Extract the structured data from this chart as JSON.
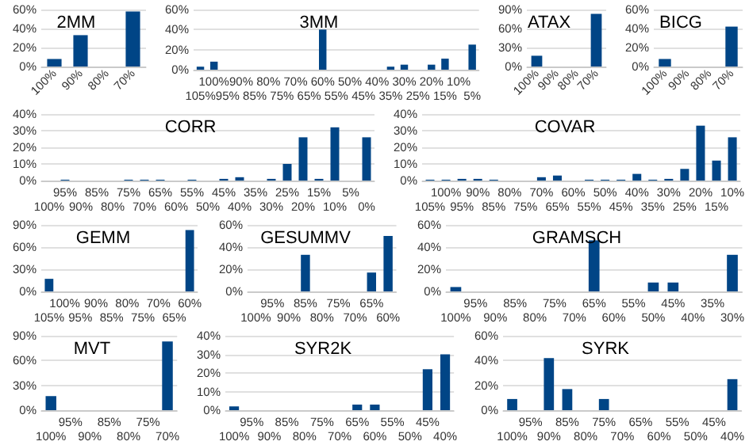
{
  "chart_data": [
    {
      "type": "bar",
      "title": "2MM",
      "categories": [
        "100%",
        "90%",
        "80%",
        "70%"
      ],
      "values": [
        8,
        33,
        0,
        58
      ],
      "color": "#004586",
      "ylim": [
        0,
        60
      ],
      "yticks": [
        {
          "value": 0,
          "label": "0%"
        },
        {
          "value": 20,
          "label": "20%"
        },
        {
          "value": 40,
          "label": "40%"
        },
        {
          "value": 60,
          "label": "60%"
        }
      ],
      "grid": "y"
    },
    {
      "type": "bar",
      "title": "3MM",
      "categories": [
        "105%",
        "100%",
        "95%",
        "90%",
        "85%",
        "80%",
        "75%",
        "70%",
        "65%",
        "60%",
        "55%",
        "50%",
        "45%",
        "40%",
        "35%",
        "30%",
        "25%",
        "20%",
        "15%",
        "10%",
        "5%"
      ],
      "values": [
        3,
        8,
        0,
        0,
        0,
        0,
        0,
        0,
        0,
        40,
        0,
        0,
        0,
        0,
        3,
        5,
        0,
        5,
        11,
        0,
        25
      ],
      "color": "#004586",
      "ylim": [
        0,
        60
      ],
      "yticks": [
        {
          "value": 0,
          "label": "0%"
        },
        {
          "value": 20,
          "label": "20%"
        },
        {
          "value": 40,
          "label": "40%"
        },
        {
          "value": 60,
          "label": "60%"
        }
      ],
      "grid": "y"
    },
    {
      "type": "bar",
      "title": "ATAX",
      "categories": [
        "100%",
        "90%",
        "80%",
        "70%"
      ],
      "values": [
        17,
        0,
        0,
        83
      ],
      "color": "#004586",
      "ylim": [
        0,
        90
      ],
      "yticks": [
        {
          "value": 0,
          "label": "0%"
        },
        {
          "value": 30,
          "label": "30%"
        },
        {
          "value": 60,
          "label": "60%"
        },
        {
          "value": 90,
          "label": "90%"
        }
      ],
      "grid": "y"
    },
    {
      "type": "bar",
      "title": "BICG",
      "categories": [
        "100%",
        "90%",
        "80%",
        "70%"
      ],
      "values": [
        8,
        0,
        0,
        42
      ],
      "color": "#004586",
      "ylim": [
        0,
        60
      ],
      "yticks": [
        {
          "value": 0,
          "label": "0%"
        },
        {
          "value": 20,
          "label": "20%"
        },
        {
          "value": 40,
          "label": "40%"
        },
        {
          "value": 60,
          "label": "60%"
        }
      ],
      "grid": "y"
    },
    {
      "type": "bar",
      "title": "CORR",
      "categories": [
        "100%",
        "95%",
        "90%",
        "85%",
        "80%",
        "75%",
        "70%",
        "65%",
        "60%",
        "55%",
        "50%",
        "45%",
        "40%",
        "35%",
        "30%",
        "25%",
        "20%",
        "15%",
        "10%",
        "5%",
        "0%"
      ],
      "values": [
        0,
        0.5,
        0,
        0,
        0,
        0.5,
        0.5,
        0.5,
        0,
        0.5,
        0,
        1,
        2,
        0,
        1,
        10,
        26,
        1,
        32,
        0,
        26
      ],
      "color": "#004586",
      "ylim": [
        0,
        40
      ],
      "yticks": [
        {
          "value": 0,
          "label": "0%"
        },
        {
          "value": 10,
          "label": "10%"
        },
        {
          "value": 20,
          "label": "20%"
        },
        {
          "value": 30,
          "label": "30%"
        },
        {
          "value": 40,
          "label": "40%"
        }
      ],
      "grid": "y"
    },
    {
      "type": "bar",
      "title": "COVAR",
      "categories": [
        "105%",
        "100%",
        "95%",
        "90%",
        "85%",
        "80%",
        "75%",
        "70%",
        "65%",
        "60%",
        "55%",
        "50%",
        "45%",
        "40%",
        "35%",
        "30%",
        "25%",
        "20%",
        "15%",
        "10%"
      ],
      "values": [
        0.5,
        0.5,
        1,
        1,
        0.5,
        0,
        0,
        2,
        3,
        0,
        0.5,
        0.5,
        0.5,
        4,
        0.5,
        1,
        7,
        33,
        12,
        26
      ],
      "color": "#004586",
      "ylim": [
        0,
        40
      ],
      "yticks": [
        {
          "value": 0,
          "label": "0%"
        },
        {
          "value": 10,
          "label": "10%"
        },
        {
          "value": 20,
          "label": "20%"
        },
        {
          "value": 30,
          "label": "30%"
        },
        {
          "value": 40,
          "label": "40%"
        }
      ],
      "grid": "y"
    },
    {
      "type": "bar",
      "title": "GEMM",
      "categories": [
        "105%",
        "100%",
        "95%",
        "90%",
        "85%",
        "80%",
        "75%",
        "70%",
        "65%",
        "60%"
      ],
      "values": [
        17,
        0,
        0,
        0,
        0,
        0,
        0,
        0,
        0,
        83
      ],
      "color": "#004586",
      "ylim": [
        0,
        90
      ],
      "yticks": [
        {
          "value": 0,
          "label": "0%"
        },
        {
          "value": 30,
          "label": "30%"
        },
        {
          "value": 60,
          "label": "60%"
        },
        {
          "value": 90,
          "label": "90%"
        }
      ],
      "grid": "y"
    },
    {
      "type": "bar",
      "title": "GESUMMV",
      "categories": [
        "100%",
        "95%",
        "90%",
        "85%",
        "80%",
        "75%",
        "70%",
        "65%",
        "60%"
      ],
      "values": [
        0,
        0,
        0,
        33,
        0,
        0,
        0,
        17,
        50
      ],
      "color": "#004586",
      "ylim": [
        0,
        60
      ],
      "yticks": [
        {
          "value": 0,
          "label": "0%"
        },
        {
          "value": 20,
          "label": "20%"
        },
        {
          "value": 40,
          "label": "40%"
        },
        {
          "value": 60,
          "label": "60%"
        }
      ],
      "grid": "y"
    },
    {
      "type": "bar",
      "title": "GRAMSCH",
      "categories": [
        "100%",
        "95%",
        "90%",
        "85%",
        "80%",
        "75%",
        "70%",
        "65%",
        "60%",
        "55%",
        "50%",
        "45%",
        "40%",
        "35%",
        "30%"
      ],
      "values": [
        4,
        0,
        0,
        0,
        0,
        0,
        0,
        46,
        0,
        0,
        8,
        8,
        0,
        0,
        33
      ],
      "color": "#004586",
      "ylim": [
        0,
        60
      ],
      "yticks": [
        {
          "value": 0,
          "label": "0%"
        },
        {
          "value": 20,
          "label": "20%"
        },
        {
          "value": 40,
          "label": "40%"
        },
        {
          "value": 60,
          "label": "60%"
        }
      ],
      "grid": "y"
    },
    {
      "type": "bar",
      "title": "MVT",
      "categories": [
        "100%",
        "95%",
        "90%",
        "85%",
        "80%",
        "75%",
        "70%"
      ],
      "values": [
        17,
        0,
        0,
        0,
        0,
        0,
        83
      ],
      "color": "#004586",
      "ylim": [
        0,
        90
      ],
      "yticks": [
        {
          "value": 0,
          "label": "0%"
        },
        {
          "value": 30,
          "label": "30%"
        },
        {
          "value": 60,
          "label": "60%"
        },
        {
          "value": 90,
          "label": "90%"
        }
      ],
      "grid": "y"
    },
    {
      "type": "bar",
      "title": "SYR2K",
      "categories": [
        "100%",
        "95%",
        "90%",
        "85%",
        "80%",
        "75%",
        "70%",
        "65%",
        "60%",
        "55%",
        "50%",
        "45%",
        "40%"
      ],
      "values": [
        2,
        0,
        0,
        0,
        0,
        0,
        0,
        3,
        3,
        0,
        0,
        22,
        30
      ],
      "color": "#004586",
      "ylim": [
        0,
        40
      ],
      "yticks": [
        {
          "value": 0,
          "label": "0%"
        },
        {
          "value": 10,
          "label": "10%"
        },
        {
          "value": 20,
          "label": "20%"
        },
        {
          "value": 30,
          "label": "30%"
        },
        {
          "value": 40,
          "label": "40%"
        }
      ],
      "grid": "y"
    },
    {
      "type": "bar",
      "title": "SYRK",
      "categories": [
        "100%",
        "95%",
        "90%",
        "85%",
        "80%",
        "75%",
        "70%",
        "65%",
        "60%",
        "55%",
        "50%",
        "45%",
        "40%"
      ],
      "values": [
        9,
        0,
        42,
        17,
        0,
        9,
        0,
        0,
        0,
        0,
        0,
        0,
        25
      ],
      "color": "#004586",
      "ylim": [
        0,
        60
      ],
      "yticks": [
        {
          "value": 0,
          "label": "0%"
        },
        {
          "value": 20,
          "label": "20%"
        },
        {
          "value": 40,
          "label": "40%"
        },
        {
          "value": 60,
          "label": "60%"
        }
      ],
      "grid": "y"
    }
  ]
}
